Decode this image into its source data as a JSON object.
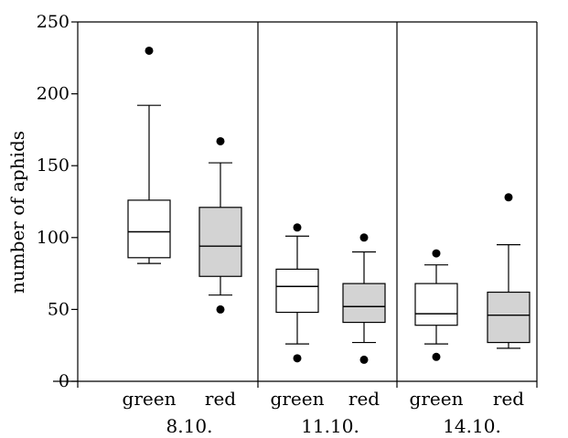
{
  "chart_data": {
    "type": "box",
    "ylabel": "number of aphids",
    "ylim": [
      0,
      250
    ],
    "yticks": [
      0,
      50,
      100,
      150,
      200,
      250
    ],
    "grid": false,
    "legend": "none",
    "groups": [
      "8.10.",
      "11.10.",
      "14.10."
    ],
    "categories": [
      "green",
      "red",
      "green",
      "red",
      "green",
      "red"
    ],
    "colors": {
      "green": "#ffffff",
      "red": "#d3d3d3"
    },
    "boxes": [
      {
        "group": "8.10.",
        "category": "green",
        "whisker_low": 82,
        "q1": 86,
        "median": 104,
        "q3": 126,
        "whisker_high": 192,
        "outliers": [
          230
        ]
      },
      {
        "group": "8.10.",
        "category": "red",
        "whisker_low": 60,
        "q1": 73,
        "median": 94,
        "q3": 121,
        "whisker_high": 152,
        "outliers": [
          167,
          50
        ]
      },
      {
        "group": "11.10.",
        "category": "green",
        "whisker_low": 26,
        "q1": 48,
        "median": 66,
        "q3": 78,
        "whisker_high": 101,
        "outliers": [
          107,
          16
        ]
      },
      {
        "group": "11.10.",
        "category": "red",
        "whisker_low": 27,
        "q1": 41,
        "median": 52,
        "q3": 68,
        "whisker_high": 90,
        "outliers": [
          100,
          15
        ]
      },
      {
        "group": "14.10.",
        "category": "green",
        "whisker_low": 26,
        "q1": 39,
        "median": 47,
        "q3": 68,
        "whisker_high": 81,
        "outliers": [
          89,
          17
        ]
      },
      {
        "group": "14.10.",
        "category": "red",
        "whisker_low": 23,
        "q1": 27,
        "median": 46,
        "q3": 62,
        "whisker_high": 95,
        "outliers": [
          128
        ]
      }
    ]
  }
}
